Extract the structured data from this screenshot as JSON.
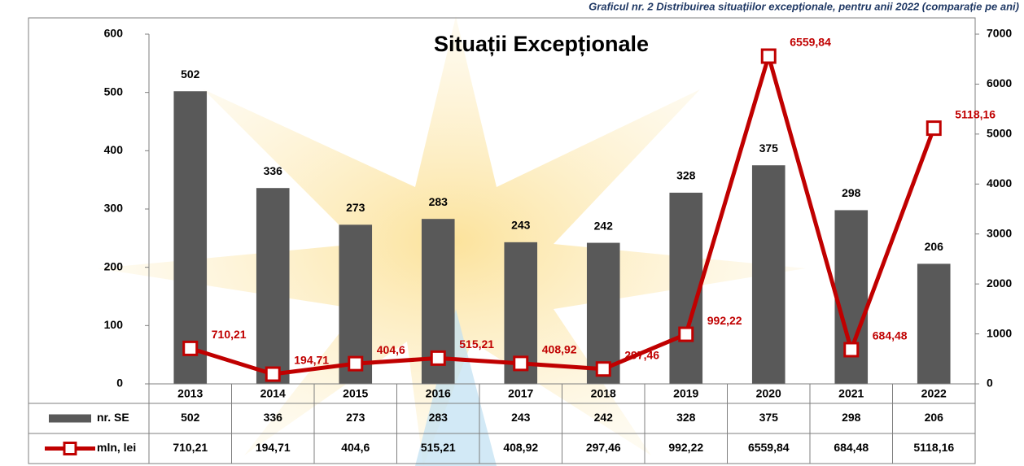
{
  "chart_data": {
    "type": "combo",
    "caption": "Graficul nr. 2 Distribuirea situațiilor excepționale, pentru anii 2022 (comparație pe ani)",
    "title": "Situații Excepționale",
    "categories": [
      "2013",
      "2014",
      "2015",
      "2016",
      "2017",
      "2018",
      "2019",
      "2020",
      "2021",
      "2022"
    ],
    "series": [
      {
        "name": "nr. SE",
        "type": "bar",
        "color": "#595959",
        "values": [
          502,
          336,
          273,
          283,
          243,
          242,
          328,
          375,
          298,
          206
        ]
      },
      {
        "name": "mln, lei",
        "type": "line",
        "axis": "y2",
        "color": "#c00000",
        "values": [
          710.21,
          194.71,
          404.6,
          515.21,
          408.92,
          297.46,
          992.22,
          6559.84,
          684.48,
          5118.16
        ],
        "value_labels": [
          "710,21",
          "194,71",
          "404,6",
          "515,21",
          "408,92",
          "297,46",
          "992,22",
          "6559,84",
          "684,48",
          "5118,16"
        ]
      }
    ],
    "ylim": [
      0,
      600
    ],
    "yticks": [
      0,
      100,
      200,
      300,
      400,
      500,
      600
    ],
    "y2lim": [
      0,
      7000
    ],
    "y2ticks": [
      0,
      1000,
      2000,
      3000,
      4000,
      5000,
      6000,
      7000
    ]
  }
}
